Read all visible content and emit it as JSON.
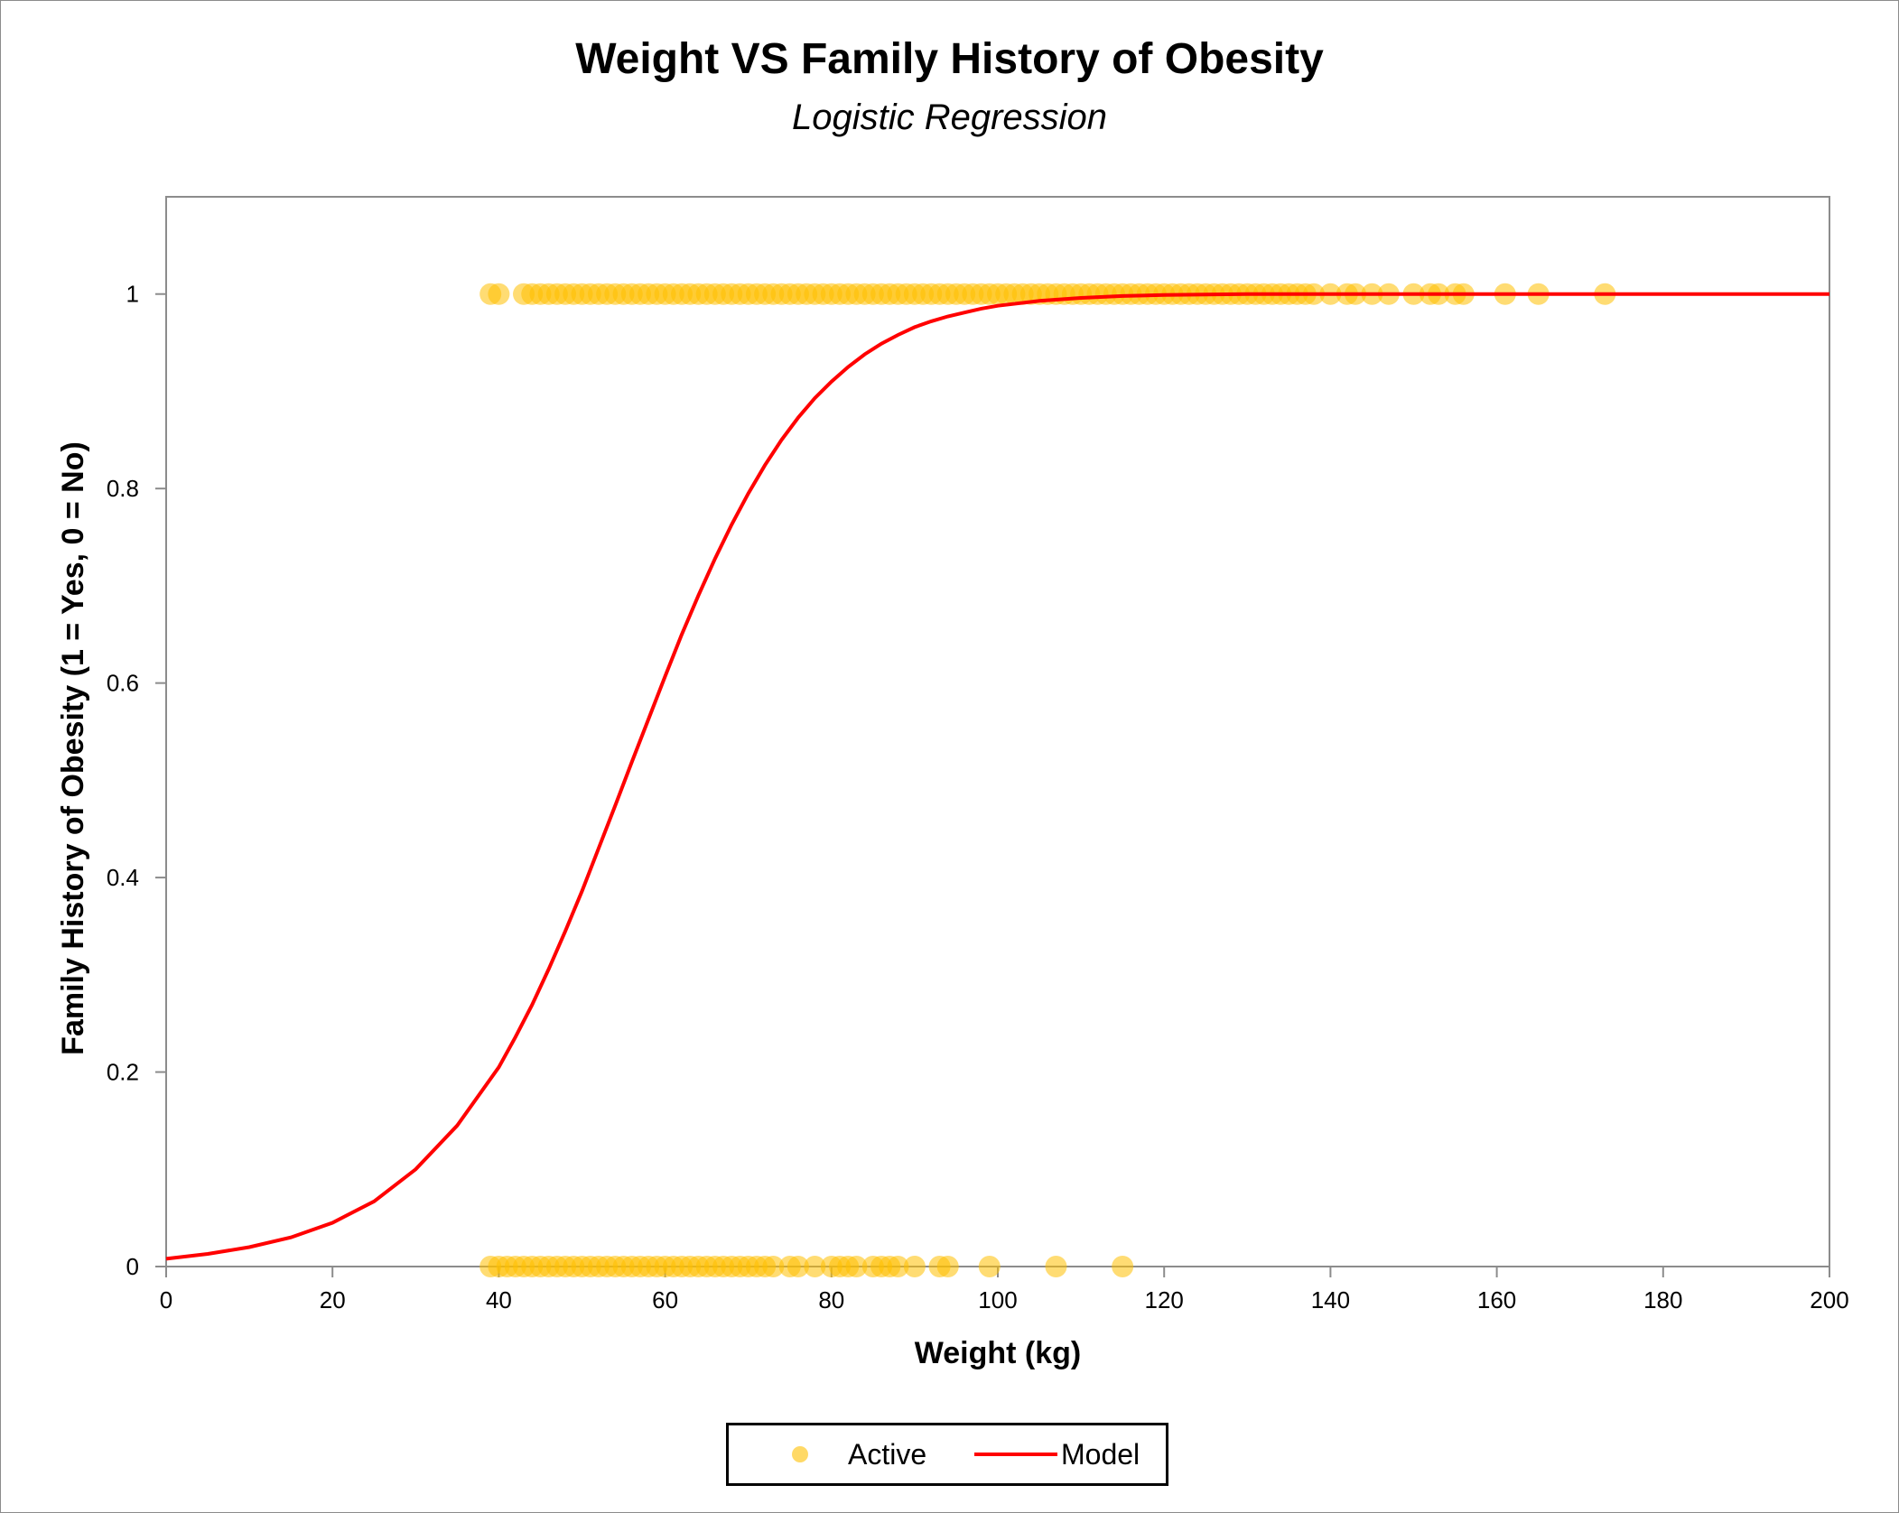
{
  "chart_data": {
    "type": "scatter",
    "title": "Weight VS Family History of Obesity",
    "subtitle": "Logistic Regression",
    "xlabel": "Weight (kg)",
    "ylabel": "Family History of Obesity (1 = Yes, 0 = No)",
    "xlim": [
      0,
      200
    ],
    "ylim": [
      0,
      1.1
    ],
    "x_ticks": [
      "0",
      "20",
      "40",
      "60",
      "80",
      "100",
      "120",
      "140",
      "160",
      "180",
      "200"
    ],
    "y_ticks": [
      "0",
      "0.2",
      "0.4",
      "0.6",
      "0.8",
      "1"
    ],
    "grid": false,
    "legend_position": "bottom",
    "series": [
      {
        "name": "Active",
        "kind": "scatter",
        "color": "#FFC000",
        "points_y1": [
          39,
          40,
          43,
          44,
          45,
          46,
          47,
          48,
          49,
          50,
          51,
          52,
          53,
          54,
          55,
          56,
          57,
          58,
          59,
          60,
          61,
          62,
          63,
          64,
          65,
          66,
          67,
          68,
          69,
          70,
          71,
          72,
          73,
          74,
          75,
          76,
          77,
          78,
          79,
          80,
          81,
          82,
          83,
          84,
          85,
          86,
          87,
          88,
          89,
          90,
          91,
          92,
          93,
          94,
          95,
          96,
          97,
          98,
          99,
          100,
          101,
          102,
          103,
          104,
          105,
          106,
          107,
          108,
          109,
          110,
          111,
          112,
          113,
          114,
          115,
          116,
          117,
          118,
          119,
          120,
          121,
          122,
          123,
          124,
          125,
          126,
          127,
          128,
          129,
          130,
          131,
          132,
          133,
          134,
          135,
          136,
          137,
          138,
          140,
          142,
          143,
          145,
          147,
          150,
          152,
          153,
          155,
          156,
          161,
          165,
          173
        ],
        "points_y0": [
          39,
          40,
          41,
          42,
          43,
          44,
          45,
          46,
          47,
          48,
          49,
          50,
          51,
          52,
          53,
          54,
          55,
          56,
          57,
          58,
          59,
          60,
          61,
          62,
          63,
          64,
          65,
          66,
          67,
          68,
          69,
          70,
          71,
          72,
          73,
          75,
          76,
          78,
          80,
          81,
          82,
          83,
          85,
          86,
          87,
          88,
          90,
          93,
          94,
          99,
          107,
          115
        ]
      },
      {
        "name": "Model",
        "kind": "line",
        "color": "#FF0000",
        "x": [
          0,
          5,
          10,
          15,
          20,
          25,
          30,
          35,
          40,
          42,
          44,
          46,
          48,
          50,
          52,
          54,
          56,
          58,
          60,
          62,
          64,
          66,
          68,
          70,
          72,
          74,
          76,
          78,
          80,
          82,
          84,
          86,
          88,
          90,
          92,
          94,
          96,
          98,
          100,
          105,
          110,
          115,
          120,
          130,
          140,
          150,
          160,
          170,
          180,
          190,
          200
        ],
        "y": [
          0.008,
          0.013,
          0.02,
          0.03,
          0.045,
          0.067,
          0.1,
          0.145,
          0.205,
          0.236,
          0.269,
          0.306,
          0.345,
          0.386,
          0.43,
          0.474,
          0.519,
          0.563,
          0.607,
          0.65,
          0.69,
          0.728,
          0.763,
          0.795,
          0.824,
          0.85,
          0.873,
          0.893,
          0.91,
          0.925,
          0.938,
          0.949,
          0.958,
          0.966,
          0.972,
          0.977,
          0.981,
          0.985,
          0.988,
          0.993,
          0.996,
          0.998,
          0.999,
          1.0,
          1.0,
          1.0,
          1.0,
          1.0,
          1.0,
          1.0,
          1.0
        ]
      }
    ]
  },
  "legend": {
    "items": [
      {
        "label": "Active",
        "color": "#FFC000",
        "kind": "dot"
      },
      {
        "label": "Model",
        "color": "#FF0000",
        "kind": "line"
      }
    ]
  }
}
